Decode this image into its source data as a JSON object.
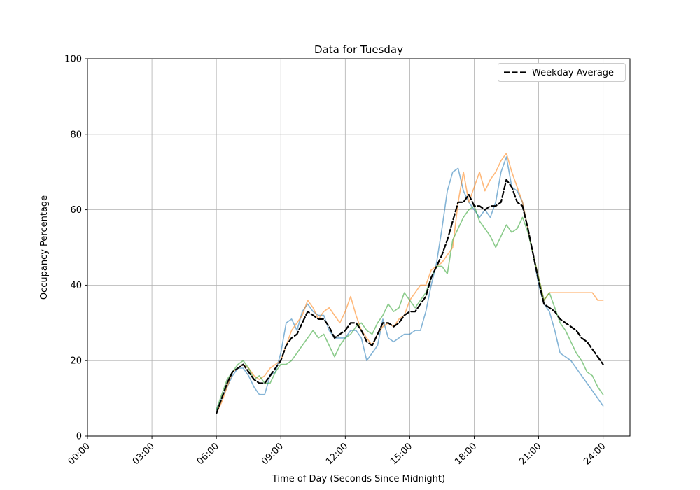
{
  "figure": {
    "title": "Data for Tuesday",
    "background": "#ffffff"
  },
  "chart_data": {
    "type": "line",
    "title": "Data for Tuesday",
    "xlabel": "Time of Day (Seconds Since Midnight)",
    "ylabel": "Occupancy Percentage",
    "xlim": [
      0,
      90900
    ],
    "ylim": [
      0,
      100
    ],
    "x_ticks": [
      0,
      10800,
      21600,
      32400,
      43200,
      54000,
      64800,
      75600,
      86400
    ],
    "x_tick_labels": [
      "00:00",
      "03:00",
      "06:00",
      "09:00",
      "12:00",
      "15:00",
      "18:00",
      "21:00",
      "24:00"
    ],
    "y_ticks": [
      0,
      20,
      40,
      60,
      80,
      100
    ],
    "y_tick_labels": [
      "0",
      "20",
      "40",
      "60",
      "80",
      "100"
    ],
    "grid": true,
    "grid_color": "#b0b0b0",
    "legend_position": "upper right",
    "legend": [
      {
        "label": "Weekday Average",
        "color": "#000000",
        "dashed": true
      }
    ],
    "x_start": 21600,
    "x_step": 900,
    "series": [
      {
        "name": "series-1",
        "color": "#1f77b4",
        "opacity": 0.55,
        "width": 1.6,
        "dashed": false,
        "values": [
          7,
          10,
          13,
          16,
          18,
          18,
          16,
          13,
          11,
          11,
          16,
          17,
          22,
          30,
          31,
          28,
          33,
          35,
          33,
          32,
          32,
          28,
          26,
          26,
          26,
          28,
          28,
          26,
          20,
          22,
          24,
          31,
          26,
          25,
          26,
          27,
          27,
          28,
          28,
          33,
          40,
          46,
          55,
          65,
          70,
          71,
          65,
          62,
          60,
          58,
          60,
          58,
          62,
          70,
          74,
          66,
          65,
          62,
          55,
          48,
          40,
          35,
          33,
          28,
          22,
          21,
          20,
          18,
          16,
          14,
          12,
          10,
          8
        ]
      },
      {
        "name": "series-2",
        "color": "#ff7f0e",
        "opacity": 0.55,
        "width": 1.6,
        "dashed": false,
        "values": [
          6,
          9,
          13,
          17,
          18,
          19,
          18,
          16,
          15,
          16,
          18,
          19,
          20,
          24,
          28,
          30,
          32,
          36,
          34,
          31,
          33,
          34,
          32,
          30,
          33,
          37,
          32,
          28,
          26,
          24,
          27,
          29,
          30,
          29,
          31,
          32,
          36,
          38,
          40,
          40,
          44,
          45,
          46,
          48,
          50,
          62,
          70,
          62,
          66,
          70,
          65,
          68,
          70,
          73,
          75,
          70,
          66,
          62,
          55,
          48,
          42,
          36,
          38,
          38,
          38,
          38,
          38,
          38,
          38,
          38,
          38,
          36,
          36
        ]
      },
      {
        "name": "series-3",
        "color": "#2ca02c",
        "opacity": 0.55,
        "width": 1.6,
        "dashed": false,
        "values": [
          7,
          11,
          15,
          17,
          19,
          20,
          18,
          15,
          16,
          14,
          14,
          17,
          19,
          19,
          20,
          22,
          24,
          26,
          28,
          26,
          27,
          24,
          21,
          24,
          26,
          27,
          29,
          30,
          28,
          27,
          30,
          32,
          35,
          33,
          34,
          38,
          36,
          34,
          36,
          38,
          42,
          45,
          45,
          43,
          52,
          55,
          58,
          60,
          61,
          57,
          55,
          53,
          50,
          53,
          56,
          54,
          55,
          58,
          54,
          48,
          42,
          36,
          38,
          34,
          30,
          28,
          25,
          22,
          20,
          17,
          16,
          13,
          11
        ]
      },
      {
        "name": "weekday-average",
        "label": "Weekday Average",
        "color": "#000000",
        "opacity": 1,
        "width": 2.2,
        "dashed": true,
        "values": [
          6,
          10,
          14,
          17,
          18,
          19,
          17,
          15,
          14,
          14,
          16,
          18,
          20,
          24,
          26,
          27,
          30,
          33,
          32,
          31,
          31,
          29,
          26,
          27,
          28,
          30,
          30,
          28,
          25,
          24,
          27,
          30,
          30,
          29,
          30,
          32,
          33,
          33,
          35,
          37,
          42,
          45,
          48,
          52,
          57,
          62,
          62,
          64,
          61,
          61,
          60,
          61,
          61,
          62,
          68,
          66,
          62,
          61,
          55,
          48,
          41,
          35,
          34,
          33,
          31,
          30,
          29,
          28,
          26,
          25,
          23,
          21,
          19
        ]
      }
    ]
  }
}
